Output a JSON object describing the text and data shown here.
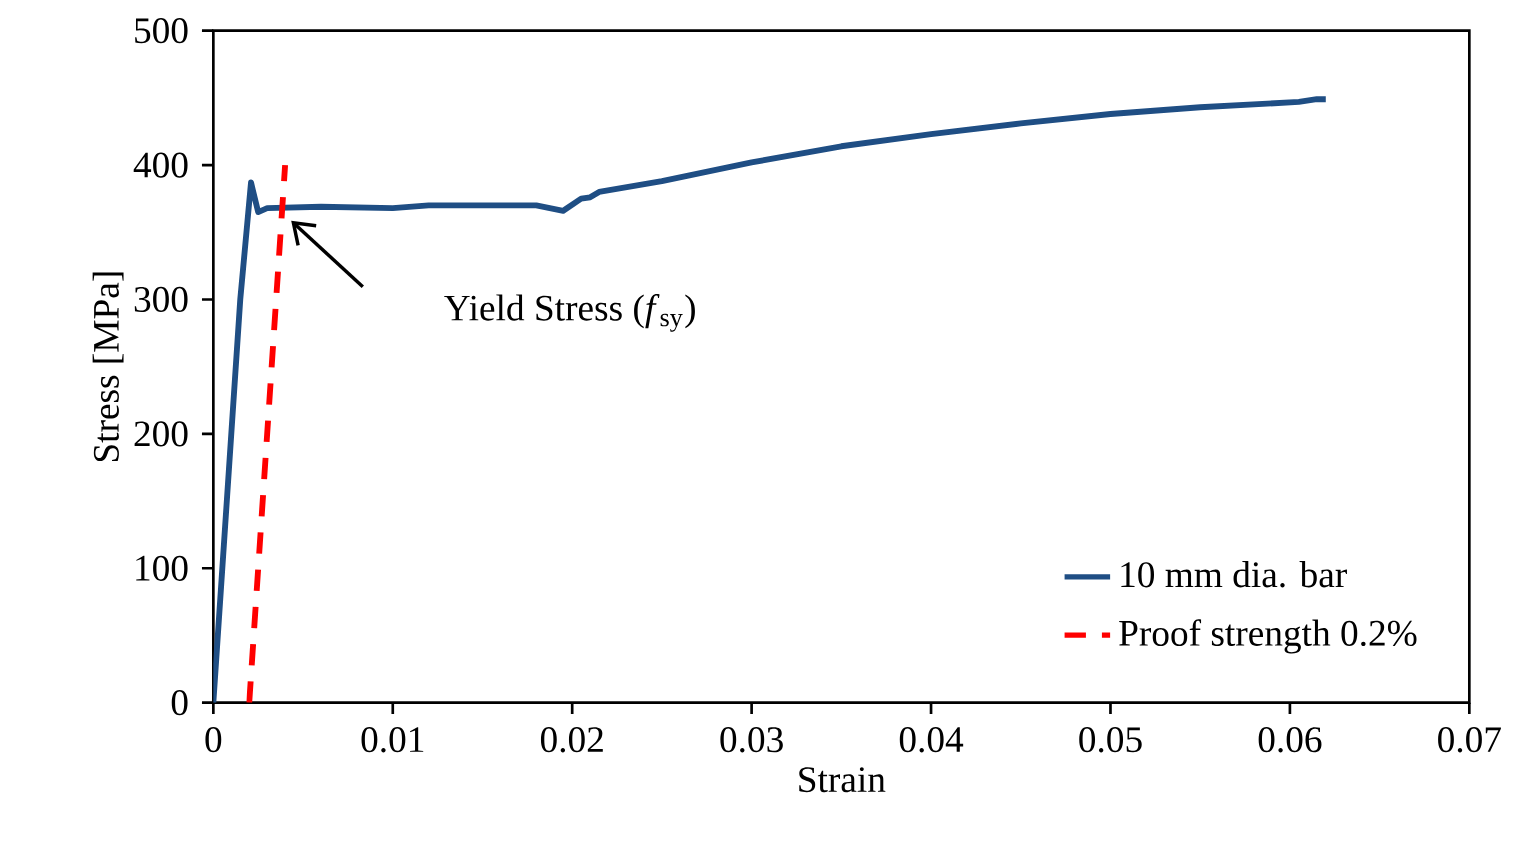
{
  "chart_data": {
    "type": "line",
    "xlabel": "Strain",
    "ylabel": "Stress [MPa]",
    "xlim": [
      0,
      0.07
    ],
    "xticks": [
      0,
      0.01,
      0.02,
      0.03,
      0.04,
      0.05,
      0.06,
      0.07
    ],
    "ylim": [
      0,
      500
    ],
    "yticks": [
      0,
      100,
      200,
      300,
      400,
      500
    ],
    "grid": false,
    "legend": "bottom right",
    "marker": "none",
    "series": [
      {
        "name": "10 mm dia. bar",
        "color": "#1f4e84",
        "line_style": "solid",
        "x": [
          0,
          0.0015,
          0.0021,
          0.0025,
          0.003,
          0.006,
          0.01,
          0.012,
          0.018,
          0.0195,
          0.0205,
          0.021,
          0.0215,
          0.025,
          0.03,
          0.035,
          0.04,
          0.045,
          0.05,
          0.055,
          0.0605,
          0.0615,
          0.062
        ],
        "values": [
          0,
          300,
          387,
          365,
          368,
          369,
          368,
          370,
          370,
          366,
          375,
          376,
          380,
          388,
          402,
          414,
          423,
          431,
          438,
          443,
          447,
          449,
          449
        ]
      },
      {
        "name": "Proof strength 0.2%",
        "color": "#ff0000",
        "line_style": "dashed",
        "x": [
          0.002,
          0.004
        ],
        "values": [
          0,
          400
        ]
      }
    ],
    "annotations": [
      "Yield Stress (*f*$_{sy}$)"
    ]
  }
}
